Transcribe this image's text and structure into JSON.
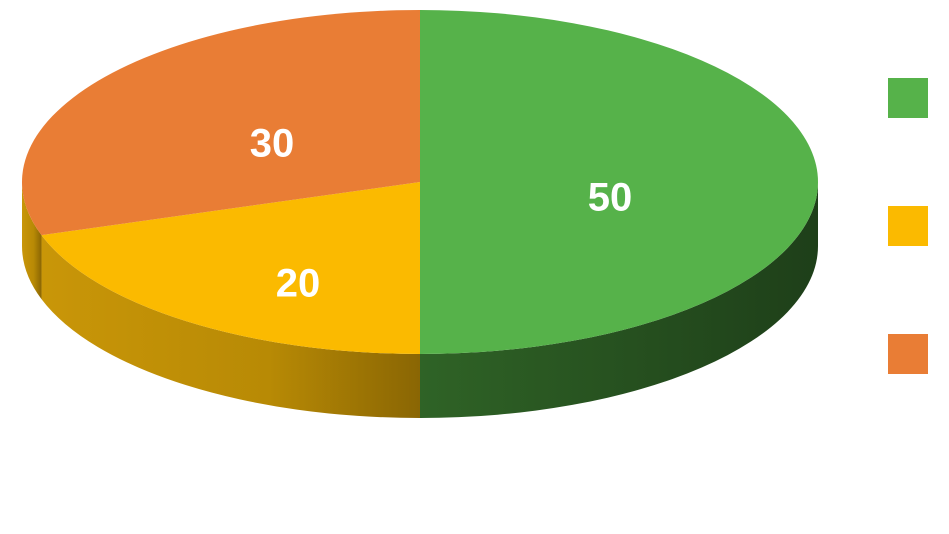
{
  "chart_data": {
    "type": "pie",
    "style": "3d",
    "categories": [
      "",
      "",
      ""
    ],
    "values": [
      50,
      20,
      30
    ],
    "data_labels": [
      "50",
      "20",
      "30"
    ],
    "colors": [
      "#56b24a",
      "#fbba00",
      "#e97d35"
    ],
    "side_colors": [
      "#2a5a22",
      "#b88a05",
      "#a8552a"
    ],
    "legend_placement": "right",
    "title": "",
    "xlabel": "",
    "ylabel": ""
  }
}
